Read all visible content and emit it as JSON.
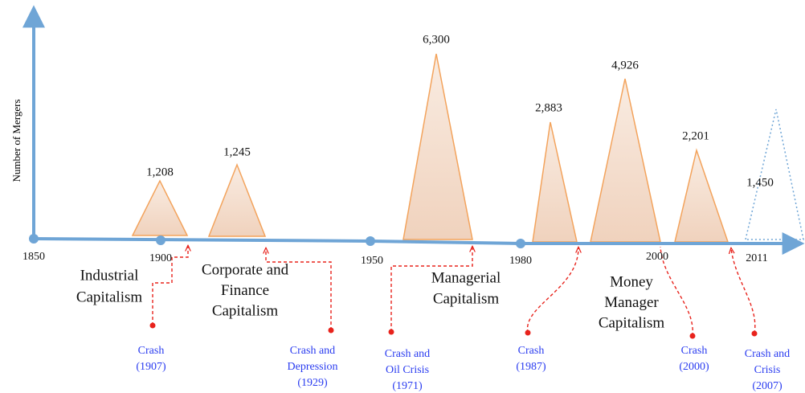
{
  "y_axis_label": "Number of Mergers",
  "years": [
    "1850",
    "1900",
    "1950",
    "1980",
    "2000",
    "2011"
  ],
  "waves": [
    {
      "label": "1,208"
    },
    {
      "label": "1,245"
    },
    {
      "label": "6,300"
    },
    {
      "label": "2,883"
    },
    {
      "label": "4,926"
    },
    {
      "label": "2,201"
    },
    {
      "label": "1,450"
    }
  ],
  "eras": [
    {
      "lines": [
        "Industrial",
        "Capitalism"
      ]
    },
    {
      "lines": [
        "Corporate and",
        "Finance",
        "Capitalism"
      ]
    },
    {
      "lines": [
        "Managerial",
        "Capitalism"
      ]
    },
    {
      "lines": [
        "Money",
        "Manager",
        "Capitalism"
      ]
    }
  ],
  "crashes": [
    {
      "lines": [
        "Crash",
        "(1907)"
      ]
    },
    {
      "lines": [
        "Crash and",
        "Depression",
        "(1929)"
      ]
    },
    {
      "lines": [
        "Crash and",
        "Oil Crisis",
        "(1971)"
      ]
    },
    {
      "lines": [
        "Crash",
        "(1987)"
      ]
    },
    {
      "lines": [
        "Crash",
        "(2000)"
      ]
    },
    {
      "lines": [
        "Crash and",
        "Crisis",
        "(2007)"
      ]
    }
  ]
}
